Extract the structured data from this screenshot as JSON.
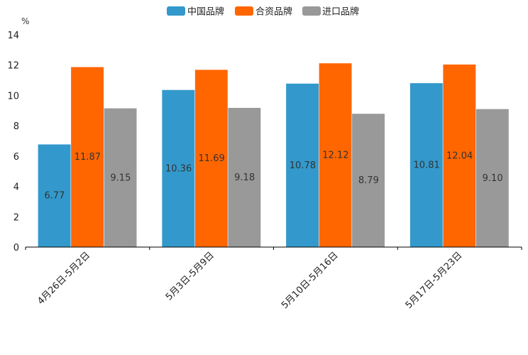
{
  "chart_data": {
    "type": "bar",
    "title": "",
    "xlabel": "",
    "ylabel": "%",
    "ylim": [
      0,
      14
    ],
    "yticks": [
      0,
      2,
      4,
      6,
      8,
      10,
      12,
      14
    ],
    "categories": [
      "4月26日-5月2日",
      "5月3日-5月9日",
      "5月10日-5月16日",
      "5月17日-5月23日"
    ],
    "series": [
      {
        "name": "中国品牌",
        "color": "#3399cc",
        "values": [
          6.77,
          10.36,
          10.78,
          10.81
        ],
        "labels": [
          "6.77",
          "10.36",
          "10.78",
          "10.81"
        ]
      },
      {
        "name": "合资品牌",
        "color": "#ff6600",
        "values": [
          11.87,
          11.69,
          12.12,
          12.04
        ],
        "labels": [
          "11.87",
          "11.69",
          "12.12",
          "12.04"
        ]
      },
      {
        "name": "进口品牌",
        "color": "#999999",
        "values": [
          9.15,
          9.18,
          8.79,
          9.1
        ],
        "labels": [
          "9.15",
          "9.18",
          "8.79",
          "9.10"
        ]
      }
    ],
    "legend_position": "top-center",
    "grid": false
  }
}
